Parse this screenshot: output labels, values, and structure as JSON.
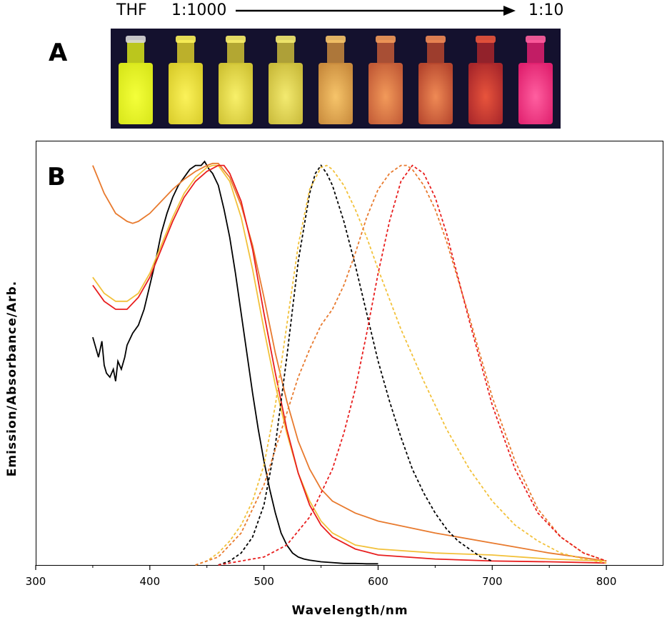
{
  "panel_a": {
    "letter": "A",
    "caption_left": "THF",
    "caption_start": "1:1000",
    "caption_end": "1:10",
    "vials": [
      {
        "glow": "#f4ff3a",
        "body": "#d8e61a"
      },
      {
        "glow": "#fbf25a",
        "body": "#d9cc2a"
      },
      {
        "glow": "#f8f06a",
        "body": "#cfc233"
      },
      {
        "glow": "#f3ea70",
        "body": "#c9ba3a"
      },
      {
        "glow": "#f6c46a",
        "body": "#c88a3c"
      },
      {
        "glow": "#f29a5a",
        "body": "#c25a36"
      },
      {
        "glow": "#ef8a55",
        "body": "#b5452d"
      },
      {
        "glow": "#e8543c",
        "body": "#a8262a"
      },
      {
        "glow": "#ff5fa0",
        "body": "#e0206e"
      }
    ]
  },
  "chart_data": {
    "type": "line",
    "panel_letter": "B",
    "xlabel": "Wavelength/nm",
    "ylabel": "Emission/Absorbance/Arb.",
    "xlim": [
      300,
      850
    ],
    "ylim": [
      0,
      1.06
    ],
    "xticks": [
      "300",
      "400",
      "500",
      "600",
      "700",
      "800"
    ],
    "grid": false,
    "series": [
      {
        "color": "#000000",
        "dash": false,
        "x": [
          350,
          352,
          355,
          358,
          360,
          362,
          365,
          368,
          370,
          372,
          375,
          378,
          380,
          385,
          390,
          395,
          400,
          405,
          410,
          415,
          420,
          425,
          430,
          435,
          440,
          445,
          448,
          450,
          452,
          455,
          460,
          465,
          470,
          475,
          480,
          485,
          490,
          495,
          500,
          505,
          510,
          515,
          520,
          525,
          530,
          535,
          540,
          545,
          550,
          560,
          570,
          580,
          590,
          600
        ],
        "y": [
          0.57,
          0.55,
          0.52,
          0.56,
          0.5,
          0.48,
          0.47,
          0.49,
          0.46,
          0.51,
          0.49,
          0.52,
          0.55,
          0.58,
          0.6,
          0.64,
          0.7,
          0.76,
          0.83,
          0.88,
          0.92,
          0.95,
          0.97,
          0.99,
          1.0,
          1.0,
          1.01,
          1.0,
          0.99,
          0.98,
          0.95,
          0.89,
          0.82,
          0.73,
          0.63,
          0.53,
          0.43,
          0.34,
          0.26,
          0.19,
          0.13,
          0.08,
          0.05,
          0.03,
          0.02,
          0.015,
          0.012,
          0.01,
          0.008,
          0.006,
          0.004,
          0.004,
          0.003,
          0.003
        ]
      },
      {
        "color": "#e87a2e",
        "dash": false,
        "x": [
          350,
          360,
          370,
          380,
          385,
          390,
          400,
          410,
          420,
          430,
          440,
          450,
          455,
          460,
          470,
          480,
          490,
          500,
          510,
          520,
          530,
          540,
          550,
          560,
          580,
          600,
          650,
          700,
          750,
          800
        ],
        "y": [
          1.0,
          0.93,
          0.88,
          0.86,
          0.855,
          0.86,
          0.88,
          0.91,
          0.94,
          0.965,
          0.985,
          1.0,
          1.005,
          1.005,
          0.97,
          0.9,
          0.8,
          0.67,
          0.53,
          0.41,
          0.31,
          0.24,
          0.19,
          0.16,
          0.13,
          0.11,
          0.08,
          0.055,
          0.03,
          0.01
        ]
      },
      {
        "color": "#f2c13a",
        "dash": false,
        "x": [
          350,
          360,
          370,
          380,
          390,
          400,
          410,
          420,
          430,
          440,
          450,
          455,
          460,
          470,
          480,
          490,
          500,
          510,
          520,
          530,
          540,
          550,
          560,
          580,
          600,
          650,
          700,
          750,
          800
        ],
        "y": [
          0.72,
          0.68,
          0.66,
          0.66,
          0.68,
          0.73,
          0.8,
          0.87,
          0.93,
          0.97,
          0.995,
          1.0,
          1.0,
          0.96,
          0.87,
          0.74,
          0.59,
          0.45,
          0.33,
          0.23,
          0.16,
          0.11,
          0.08,
          0.05,
          0.04,
          0.03,
          0.025,
          0.015,
          0.01
        ]
      },
      {
        "color": "#e81e1e",
        "dash": false,
        "x": [
          350,
          360,
          370,
          380,
          390,
          400,
          410,
          420,
          430,
          440,
          450,
          460,
          465,
          470,
          480,
          490,
          500,
          510,
          520,
          530,
          540,
          550,
          560,
          580,
          600,
          650,
          700,
          750,
          800
        ],
        "y": [
          0.7,
          0.66,
          0.64,
          0.64,
          0.67,
          0.72,
          0.79,
          0.86,
          0.92,
          0.96,
          0.985,
          1.0,
          1.0,
          0.98,
          0.91,
          0.79,
          0.63,
          0.48,
          0.34,
          0.23,
          0.15,
          0.1,
          0.07,
          0.04,
          0.025,
          0.015,
          0.01,
          0.008,
          0.005
        ]
      },
      {
        "color": "#000000",
        "dash": true,
        "x": [
          460,
          470,
          480,
          490,
          500,
          510,
          520,
          530,
          540,
          545,
          550,
          555,
          560,
          570,
          580,
          590,
          600,
          610,
          620,
          630,
          640,
          650,
          660,
          670,
          680,
          690,
          700
        ],
        "y": [
          0.0,
          0.01,
          0.03,
          0.07,
          0.15,
          0.3,
          0.52,
          0.76,
          0.93,
          0.98,
          1.0,
          0.98,
          0.95,
          0.86,
          0.75,
          0.63,
          0.51,
          0.41,
          0.32,
          0.24,
          0.18,
          0.13,
          0.09,
          0.06,
          0.04,
          0.02,
          0.01
        ]
      },
      {
        "color": "#f2c13a",
        "dash": true,
        "x": [
          440,
          450,
          460,
          470,
          480,
          490,
          500,
          510,
          520,
          530,
          540,
          550,
          555,
          560,
          570,
          580,
          590,
          600,
          620,
          640,
          660,
          680,
          700,
          720,
          740,
          760,
          780,
          800
        ],
        "y": [
          0.0,
          0.01,
          0.03,
          0.06,
          0.1,
          0.16,
          0.25,
          0.4,
          0.6,
          0.8,
          0.94,
          0.995,
          1.0,
          0.99,
          0.95,
          0.89,
          0.82,
          0.74,
          0.59,
          0.46,
          0.34,
          0.24,
          0.16,
          0.1,
          0.06,
          0.03,
          0.015,
          0.005
        ]
      },
      {
        "color": "#e87a2e",
        "dash": true,
        "x": [
          440,
          460,
          480,
          500,
          510,
          520,
          530,
          540,
          550,
          560,
          570,
          580,
          590,
          600,
          610,
          620,
          625,
          630,
          640,
          650,
          660,
          680,
          700,
          720,
          740,
          760,
          780,
          800
        ],
        "y": [
          0.0,
          0.02,
          0.08,
          0.2,
          0.29,
          0.38,
          0.47,
          0.54,
          0.6,
          0.64,
          0.7,
          0.78,
          0.87,
          0.94,
          0.98,
          1.0,
          1.0,
          0.99,
          0.95,
          0.89,
          0.81,
          0.62,
          0.42,
          0.26,
          0.14,
          0.07,
          0.03,
          0.01
        ]
      },
      {
        "color": "#e81e1e",
        "dash": true,
        "x": [
          460,
          480,
          500,
          520,
          540,
          560,
          570,
          580,
          590,
          600,
          610,
          620,
          630,
          640,
          650,
          660,
          670,
          680,
          700,
          720,
          740,
          760,
          780,
          800
        ],
        "y": [
          0.0,
          0.01,
          0.02,
          0.05,
          0.12,
          0.24,
          0.33,
          0.44,
          0.58,
          0.73,
          0.86,
          0.96,
          1.0,
          0.98,
          0.92,
          0.83,
          0.72,
          0.61,
          0.4,
          0.24,
          0.13,
          0.07,
          0.03,
          0.01
        ]
      }
    ]
  }
}
